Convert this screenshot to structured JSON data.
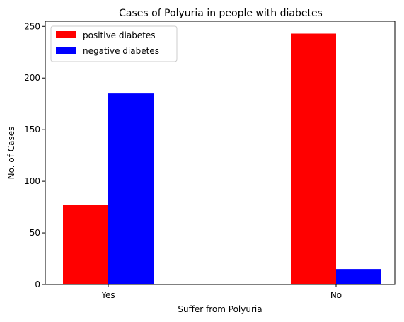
{
  "chart_data": {
    "type": "bar",
    "title": "Cases of Polyuria in people with diabetes",
    "xlabel": "Suffer from Polyuria",
    "ylabel": "No. of Cases",
    "categories": [
      "Yes",
      "No"
    ],
    "series": [
      {
        "name": "positive diabetes",
        "color": "#ff0000",
        "values": [
          77,
          243
        ]
      },
      {
        "name": "negative diabetes",
        "color": "#0000ff",
        "values": [
          185,
          15
        ]
      }
    ],
    "ylim": [
      0,
      255
    ],
    "yticks": [
      0,
      50,
      100,
      150,
      200,
      250
    ],
    "grid": false,
    "legend": "top-left"
  }
}
